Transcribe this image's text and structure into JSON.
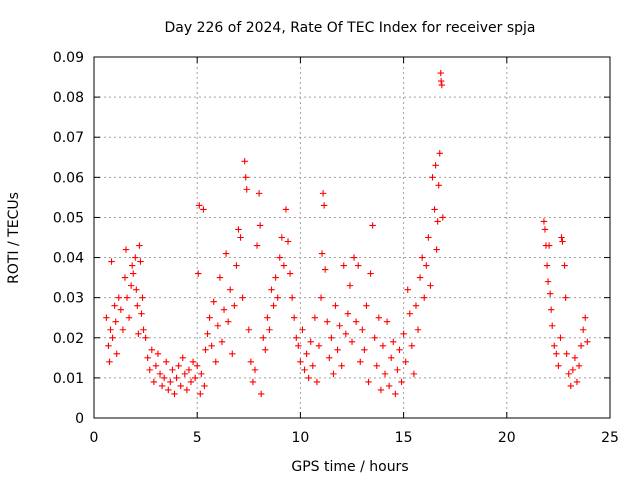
{
  "chart_data": {
    "type": "scatter",
    "title": "Day 226 of 2024, Rate Of TEC Index for receiver spja",
    "xlabel": "GPS time / hours",
    "ylabel": "ROTI / TECUs",
    "xlim": [
      0,
      25
    ],
    "ylim": [
      0,
      0.09
    ],
    "xticks": [
      "0",
      "5",
      "10",
      "15",
      "20",
      "25"
    ],
    "yticks": [
      "0",
      "0.01",
      "0.02",
      "0.03",
      "0.04",
      "0.05",
      "0.06",
      "0.07",
      "0.08",
      "0.09"
    ],
    "grid": true,
    "marker": "plus",
    "color": "#ff0000",
    "points": [
      [
        0.6,
        0.025
      ],
      [
        0.7,
        0.018
      ],
      [
        0.75,
        0.014
      ],
      [
        0.8,
        0.022
      ],
      [
        0.85,
        0.039
      ],
      [
        0.9,
        0.02
      ],
      [
        1.0,
        0.028
      ],
      [
        1.05,
        0.024
      ],
      [
        1.1,
        0.016
      ],
      [
        1.2,
        0.03
      ],
      [
        1.3,
        0.027
      ],
      [
        1.4,
        0.022
      ],
      [
        1.5,
        0.035
      ],
      [
        1.55,
        0.042
      ],
      [
        1.6,
        0.03
      ],
      [
        1.7,
        0.025
      ],
      [
        1.8,
        0.033
      ],
      [
        1.85,
        0.038
      ],
      [
        1.9,
        0.036
      ],
      [
        2.0,
        0.04
      ],
      [
        2.05,
        0.032
      ],
      [
        2.1,
        0.028
      ],
      [
        2.15,
        0.021
      ],
      [
        2.2,
        0.043
      ],
      [
        2.25,
        0.039
      ],
      [
        2.3,
        0.026
      ],
      [
        2.35,
        0.03
      ],
      [
        2.4,
        0.022
      ],
      [
        2.5,
        0.02
      ],
      [
        2.6,
        0.015
      ],
      [
        2.7,
        0.012
      ],
      [
        2.8,
        0.017
      ],
      [
        2.9,
        0.009
      ],
      [
        3.0,
        0.013
      ],
      [
        3.1,
        0.016
      ],
      [
        3.2,
        0.011
      ],
      [
        3.3,
        0.008
      ],
      [
        3.4,
        0.01
      ],
      [
        3.5,
        0.014
      ],
      [
        3.6,
        0.007
      ],
      [
        3.7,
        0.009
      ],
      [
        3.8,
        0.012
      ],
      [
        3.9,
        0.006
      ],
      [
        4.0,
        0.01
      ],
      [
        4.1,
        0.013
      ],
      [
        4.2,
        0.008
      ],
      [
        4.3,
        0.015
      ],
      [
        4.4,
        0.011
      ],
      [
        4.5,
        0.007
      ],
      [
        4.6,
        0.012
      ],
      [
        4.7,
        0.009
      ],
      [
        4.8,
        0.014
      ],
      [
        4.9,
        0.01
      ],
      [
        5.0,
        0.013
      ],
      [
        5.05,
        0.036
      ],
      [
        5.1,
        0.053
      ],
      [
        5.15,
        0.006
      ],
      [
        5.2,
        0.011
      ],
      [
        5.3,
        0.052
      ],
      [
        5.35,
        0.008
      ],
      [
        5.4,
        0.017
      ],
      [
        5.5,
        0.021
      ],
      [
        5.6,
        0.025
      ],
      [
        5.7,
        0.018
      ],
      [
        5.8,
        0.029
      ],
      [
        5.9,
        0.014
      ],
      [
        6.0,
        0.023
      ],
      [
        6.1,
        0.035
      ],
      [
        6.2,
        0.019
      ],
      [
        6.3,
        0.027
      ],
      [
        6.4,
        0.041
      ],
      [
        6.5,
        0.024
      ],
      [
        6.6,
        0.032
      ],
      [
        6.7,
        0.016
      ],
      [
        6.8,
        0.028
      ],
      [
        6.9,
        0.038
      ],
      [
        7.0,
        0.047
      ],
      [
        7.1,
        0.045
      ],
      [
        7.2,
        0.03
      ],
      [
        7.3,
        0.064
      ],
      [
        7.35,
        0.06
      ],
      [
        7.4,
        0.057
      ],
      [
        7.5,
        0.022
      ],
      [
        7.6,
        0.014
      ],
      [
        7.7,
        0.009
      ],
      [
        7.8,
        0.012
      ],
      [
        7.9,
        0.043
      ],
      [
        8.0,
        0.056
      ],
      [
        8.05,
        0.048
      ],
      [
        8.1,
        0.006
      ],
      [
        8.2,
        0.02
      ],
      [
        8.3,
        0.017
      ],
      [
        8.4,
        0.025
      ],
      [
        8.5,
        0.022
      ],
      [
        8.6,
        0.032
      ],
      [
        8.7,
        0.028
      ],
      [
        8.8,
        0.035
      ],
      [
        8.9,
        0.03
      ],
      [
        9.0,
        0.04
      ],
      [
        9.1,
        0.045
      ],
      [
        9.2,
        0.038
      ],
      [
        9.3,
        0.052
      ],
      [
        9.4,
        0.044
      ],
      [
        9.5,
        0.036
      ],
      [
        9.6,
        0.03
      ],
      [
        9.7,
        0.025
      ],
      [
        9.8,
        0.02
      ],
      [
        9.9,
        0.018
      ],
      [
        10.0,
        0.014
      ],
      [
        10.1,
        0.022
      ],
      [
        10.2,
        0.012
      ],
      [
        10.3,
        0.016
      ],
      [
        10.4,
        0.01
      ],
      [
        10.5,
        0.019
      ],
      [
        10.6,
        0.013
      ],
      [
        10.7,
        0.025
      ],
      [
        10.8,
        0.009
      ],
      [
        10.9,
        0.018
      ],
      [
        11.0,
        0.03
      ],
      [
        11.05,
        0.041
      ],
      [
        11.1,
        0.056
      ],
      [
        11.15,
        0.053
      ],
      [
        11.2,
        0.037
      ],
      [
        11.3,
        0.024
      ],
      [
        11.4,
        0.015
      ],
      [
        11.5,
        0.02
      ],
      [
        11.6,
        0.011
      ],
      [
        11.7,
        0.028
      ],
      [
        11.8,
        0.017
      ],
      [
        11.9,
        0.023
      ],
      [
        12.0,
        0.013
      ],
      [
        12.1,
        0.038
      ],
      [
        12.2,
        0.021
      ],
      [
        12.3,
        0.026
      ],
      [
        12.4,
        0.033
      ],
      [
        12.5,
        0.019
      ],
      [
        12.6,
        0.04
      ],
      [
        12.7,
        0.024
      ],
      [
        12.8,
        0.038
      ],
      [
        12.9,
        0.014
      ],
      [
        13.0,
        0.022
      ],
      [
        13.1,
        0.017
      ],
      [
        13.2,
        0.028
      ],
      [
        13.3,
        0.009
      ],
      [
        13.4,
        0.036
      ],
      [
        13.5,
        0.048
      ],
      [
        13.6,
        0.02
      ],
      [
        13.7,
        0.013
      ],
      [
        13.8,
        0.025
      ],
      [
        13.9,
        0.007
      ],
      [
        14.0,
        0.018
      ],
      [
        14.1,
        0.011
      ],
      [
        14.2,
        0.024
      ],
      [
        14.3,
        0.008
      ],
      [
        14.4,
        0.015
      ],
      [
        14.5,
        0.019
      ],
      [
        14.6,
        0.006
      ],
      [
        14.7,
        0.012
      ],
      [
        14.8,
        0.017
      ],
      [
        14.9,
        0.009
      ],
      [
        15.0,
        0.021
      ],
      [
        15.1,
        0.014
      ],
      [
        15.2,
        0.032
      ],
      [
        15.3,
        0.026
      ],
      [
        15.4,
        0.018
      ],
      [
        15.5,
        0.011
      ],
      [
        15.6,
        0.028
      ],
      [
        15.7,
        0.022
      ],
      [
        15.8,
        0.035
      ],
      [
        15.9,
        0.04
      ],
      [
        16.0,
        0.03
      ],
      [
        16.1,
        0.038
      ],
      [
        16.2,
        0.045
      ],
      [
        16.3,
        0.033
      ],
      [
        16.4,
        0.06
      ],
      [
        16.5,
        0.052
      ],
      [
        16.55,
        0.063
      ],
      [
        16.6,
        0.042
      ],
      [
        16.65,
        0.049
      ],
      [
        16.7,
        0.058
      ],
      [
        16.75,
        0.066
      ],
      [
        16.8,
        0.086
      ],
      [
        16.82,
        0.084
      ],
      [
        16.85,
        0.083
      ],
      [
        16.9,
        0.05
      ],
      [
        21.8,
        0.049
      ],
      [
        21.85,
        0.047
      ],
      [
        21.9,
        0.043
      ],
      [
        21.95,
        0.038
      ],
      [
        22.0,
        0.034
      ],
      [
        22.05,
        0.043
      ],
      [
        22.1,
        0.031
      ],
      [
        22.15,
        0.027
      ],
      [
        22.2,
        0.023
      ],
      [
        22.3,
        0.018
      ],
      [
        22.4,
        0.016
      ],
      [
        22.5,
        0.013
      ],
      [
        22.6,
        0.02
      ],
      [
        22.65,
        0.045
      ],
      [
        22.7,
        0.044
      ],
      [
        22.8,
        0.038
      ],
      [
        22.85,
        0.03
      ],
      [
        22.9,
        0.016
      ],
      [
        23.0,
        0.011
      ],
      [
        23.1,
        0.008
      ],
      [
        23.2,
        0.012
      ],
      [
        23.3,
        0.015
      ],
      [
        23.4,
        0.009
      ],
      [
        23.5,
        0.013
      ],
      [
        23.6,
        0.018
      ],
      [
        23.7,
        0.022
      ],
      [
        23.8,
        0.025
      ],
      [
        23.9,
        0.019
      ]
    ]
  }
}
